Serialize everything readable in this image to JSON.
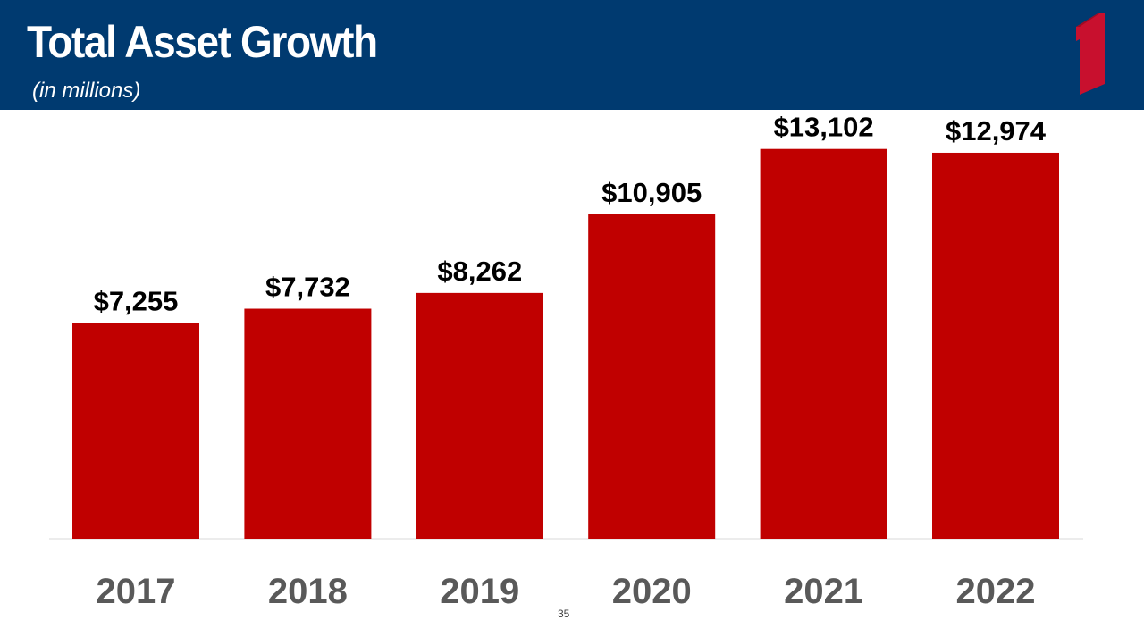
{
  "header": {
    "title": "Total Asset Growth",
    "subtitle": "(in millions)",
    "bg_color": "#003a70",
    "logo_icon": "red-numeral-one-logo",
    "logo_color": "#c8102e"
  },
  "chart_data": {
    "type": "bar",
    "title": "Total Asset Growth",
    "subtitle": "(in millions)",
    "categories": [
      "2017",
      "2018",
      "2019",
      "2020",
      "2021",
      "2022"
    ],
    "values": [
      7255,
      7732,
      8262,
      10905,
      13102,
      12974
    ],
    "value_labels": [
      "$7,255",
      "$7,732",
      "$8,262",
      "$10,905",
      "$13,102",
      "$12,974"
    ],
    "bar_color": "#c00000",
    "ylim": [
      0,
      14000
    ],
    "grid": false,
    "legend": "none"
  },
  "footer": {
    "page_number": "35"
  }
}
